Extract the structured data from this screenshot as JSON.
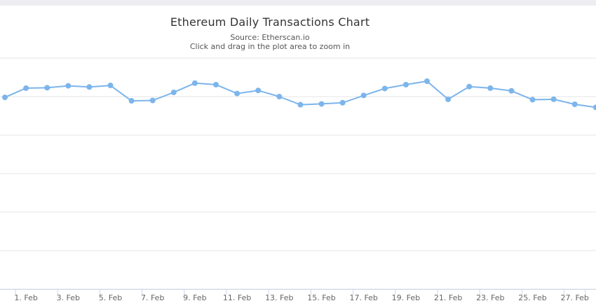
{
  "chart_data": {
    "type": "line",
    "title": "Ethereum Daily Transactions Chart",
    "subtitle": "Source: Etherscan.io",
    "subtitle2": "Click and drag in the plot area to zoom in",
    "xlabel": "",
    "ylabel": "",
    "grid": true,
    "legend": "none",
    "ylim": [
      0,
      60
    ],
    "tick_labels": [
      "1. Feb",
      "3. Feb",
      "5. Feb",
      "7. Feb",
      "9. Feb",
      "11. Feb",
      "13. Feb",
      "15. Feb",
      "17. Feb",
      "19. Feb",
      "21. Feb",
      "23. Feb",
      "25. Feb",
      "27. Feb"
    ],
    "tick_days": [
      1,
      3,
      5,
      7,
      9,
      11,
      13,
      15,
      17,
      19,
      21,
      23,
      25,
      27
    ],
    "series": [
      {
        "color": "#7cb5ec",
        "x": [
          0,
          1,
          2,
          3,
          4,
          5,
          6,
          7,
          8,
          9,
          10,
          11,
          12,
          13,
          14,
          15,
          16,
          17,
          18,
          19,
          20,
          21,
          22,
          23,
          24,
          25,
          26,
          27,
          28
        ],
        "values": [
          49.8,
          52.2,
          52.3,
          52.8,
          52.5,
          52.9,
          48.9,
          49.0,
          51.1,
          53.5,
          53.1,
          50.8,
          51.6,
          50.0,
          47.9,
          48.1,
          48.4,
          50.3,
          52.1,
          53.1,
          54.0,
          49.3,
          52.6,
          52.2,
          51.5,
          49.2,
          49.3,
          48.0,
          47.2
        ]
      }
    ]
  }
}
